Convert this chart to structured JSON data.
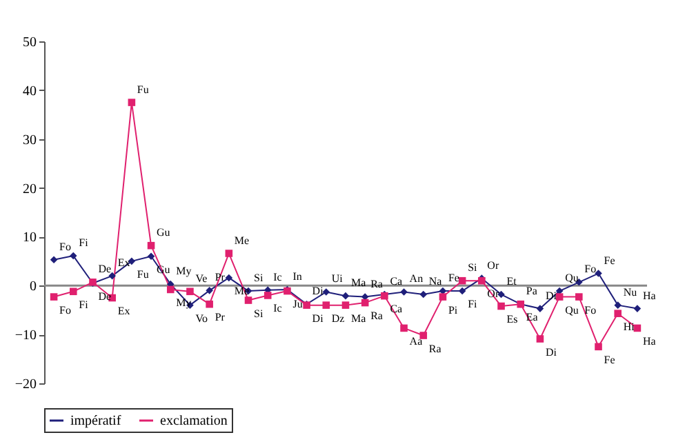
{
  "chart_data": {
    "type": "line",
    "categories": [
      null,
      null,
      null,
      null,
      null,
      null,
      null,
      null,
      null,
      null,
      null,
      null,
      null,
      null,
      null,
      null,
      null,
      null,
      null,
      null,
      null,
      null,
      null,
      null,
      null,
      null,
      null,
      null,
      null,
      null,
      null
    ],
    "series": [
      {
        "name": "impératif",
        "color": "#1f1f7a",
        "marker": "diamond",
        "values": [
          5.3,
          6.1,
          0.5,
          2.0,
          5.0,
          6.0,
          0.3,
          -4.0,
          -1.0,
          1.6,
          -1.1,
          -0.9,
          -0.8,
          -3.8,
          -1.3,
          -2.1,
          -2.3,
          -1.8,
          -1.3,
          -1.8,
          -1.1,
          -1.1,
          1.5,
          -1.8,
          -3.8,
          -4.7,
          -1.1,
          0.7,
          2.5,
          -4.0,
          -4.7
        ],
        "value_labels": [
          "Fo",
          "Fi",
          "De",
          "Ex",
          "Fu",
          "Gu",
          "My",
          "Vo",
          "Pr",
          "Me",
          "Si",
          "Ic",
          "In",
          "Di",
          "Ui",
          "Ma",
          "Ra",
          "Ca",
          "An",
          "Na",
          "Fe",
          "Fi",
          "Or",
          "Et",
          "Pa",
          "Di",
          "Qu",
          "Fo",
          "Fe",
          "Nu",
          "Ha"
        ]
      },
      {
        "name": "exclamation",
        "color": "#e0206e",
        "marker": "square",
        "values": [
          -2.3,
          -1.2,
          0.7,
          -2.5,
          37.5,
          8.2,
          -0.8,
          -1.2,
          -3.8,
          6.6,
          -3.0,
          -2.0,
          -1.1,
          -4.0,
          -4.0,
          -4.0,
          -3.5,
          -2.1,
          -8.7,
          -10.2,
          -2.3,
          1.0,
          1.0,
          -4.2,
          -3.8,
          -10.9,
          -2.3,
          -2.3,
          -12.5,
          -5.7,
          -8.7
        ],
        "value_labels": [
          "Fo",
          "Fi",
          "De",
          "Ex",
          "Fu",
          "Gu",
          "My",
          "Ve",
          "Pr",
          "Me",
          "Si",
          "Ic",
          "Ju",
          "Di",
          "Dz",
          "Ma",
          "Ra",
          "Ca",
          "Aa",
          "Ra",
          "Pi",
          "Si",
          "Or",
          "Es",
          "Ea",
          "Di",
          "Qu",
          "Fo",
          "Fe",
          "Hi",
          "Ha"
        ]
      }
    ],
    "ylim": [
      -20,
      50
    ],
    "yticks": [
      -20,
      -10,
      0,
      10,
      20,
      30,
      40,
      50
    ],
    "grid": false,
    "ref_lines": [
      {
        "axis": "y",
        "value": 0,
        "color": "#888888"
      }
    ],
    "legend": "bottom",
    "tick_labels": "y",
    "line_style": "solid"
  }
}
